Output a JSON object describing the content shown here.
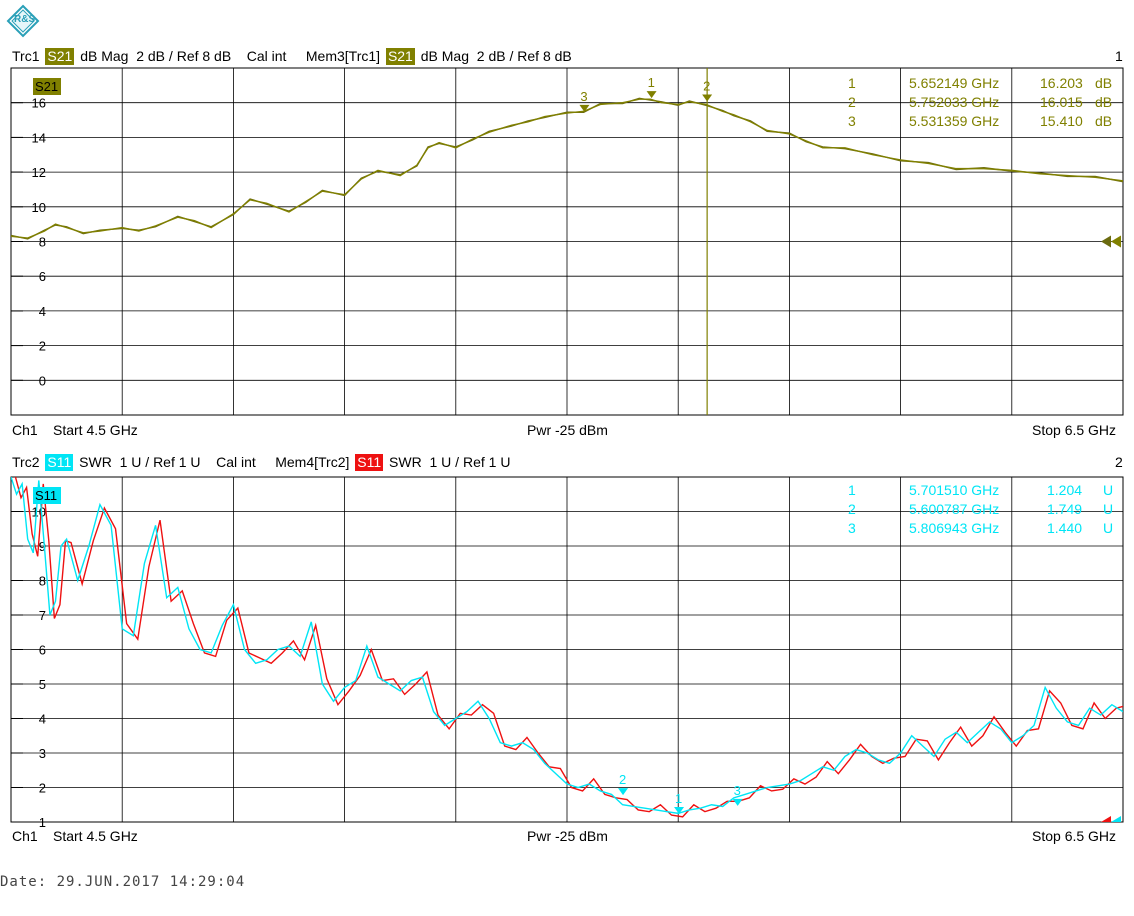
{
  "logo": {
    "text": "R&S",
    "color": "#2aa0b8"
  },
  "top_header": {
    "trace": "Trc1",
    "param": "S21",
    "format": "dB Mag",
    "scale": "2 dB /",
    "ref": "Ref 8 dB",
    "cal": "Cal int",
    "mem": "Mem3[Trc1]",
    "mem_param": "S21",
    "mem_format": "dB Mag",
    "mem_scale": "2 dB /",
    "mem_ref": "Ref 8 dB",
    "index": "1"
  },
  "bottom_header": {
    "trace": "Trc2",
    "param": "S11",
    "format": "SWR",
    "scale": "1 U /",
    "ref": "Ref 1 U",
    "cal": "Cal int",
    "mem": "Mem4[Trc2]",
    "mem_param": "S11",
    "mem_format": "SWR",
    "mem_scale": "1 U /",
    "mem_ref": "Ref 1 U",
    "index": "2"
  },
  "top_footer": {
    "ch": "Ch1",
    "start": "Start  4.5 GHz",
    "pwr": "Pwr  -25 dBm",
    "stop": "Stop  6.5 GHz"
  },
  "bottom_footer": {
    "ch": "Ch1",
    "start": "Start  4.5 GHz",
    "pwr": "Pwr  -25 dBm",
    "stop": "Stop  6.5 GHz"
  },
  "date": "Date: 29.JUN.2017  14:29:04",
  "colors": {
    "trc1": "#808000",
    "mem3": "#6b6b10",
    "trc2": "#00e5f5",
    "mem4": "#ee1111",
    "grid": "#000000"
  },
  "chart_data": [
    {
      "type": "line",
      "label": "S21",
      "x_range_ghz": [
        4.5,
        6.5
      ],
      "ylim": [
        -2,
        18
      ],
      "yticks": [
        0,
        2,
        4,
        6,
        8,
        10,
        12,
        14,
        16
      ],
      "grid": true,
      "series": [
        {
          "name": "Trc1",
          "x": [
            4.5,
            4.53,
            4.56,
            4.58,
            4.6,
            4.63,
            4.66,
            4.7,
            4.73,
            4.76,
            4.8,
            4.83,
            4.86,
            4.9,
            4.93,
            4.96,
            5.0,
            5.03,
            5.06,
            5.1,
            5.13,
            5.16,
            5.2,
            5.23,
            5.25,
            5.27,
            5.3,
            5.33,
            5.36,
            5.4,
            5.43,
            5.46,
            5.5,
            5.53,
            5.56,
            5.6,
            5.63,
            5.65,
            5.67,
            5.7,
            5.72,
            5.75,
            5.78,
            5.8,
            5.83,
            5.86,
            5.9,
            5.93,
            5.96,
            6.0,
            6.05,
            6.1,
            6.15,
            6.2,
            6.25,
            6.3,
            6.35,
            6.4,
            6.45,
            6.5
          ],
          "y": [
            8.3,
            8.2,
            8.6,
            9.0,
            8.8,
            8.5,
            8.6,
            8.8,
            8.6,
            8.9,
            9.4,
            9.2,
            8.8,
            9.6,
            10.4,
            10.2,
            9.7,
            10.3,
            10.9,
            10.7,
            11.6,
            12.1,
            11.8,
            12.4,
            13.4,
            13.7,
            13.4,
            13.9,
            14.3,
            14.7,
            14.9,
            15.2,
            15.4,
            15.5,
            15.9,
            16.0,
            16.2,
            16.2,
            16.0,
            15.9,
            16.05,
            15.9,
            15.5,
            15.3,
            14.9,
            14.4,
            14.2,
            13.8,
            13.4,
            13.4,
            13.0,
            12.7,
            12.5,
            12.2,
            12.2,
            12.1,
            11.9,
            11.8,
            11.7,
            11.5
          ]
        },
        {
          "name": "Mem3[Trc1]"
        }
      ],
      "markers": [
        {
          "id": "1",
          "freq": "5.652149 GHz",
          "value": "16.203",
          "unit": "dB",
          "x": 5.652149,
          "y": 16.203
        },
        {
          "id": "2",
          "freq": "5.752033 GHz",
          "value": "16.015",
          "unit": "dB",
          "x": 5.752033,
          "y": 16.015
        },
        {
          "id": "3",
          "freq": "5.531359 GHz",
          "value": "15.410",
          "unit": "dB",
          "x": 5.531359,
          "y": 15.41
        }
      ],
      "ref_level": 8
    },
    {
      "type": "line",
      "label": "S11",
      "x_range_ghz": [
        4.5,
        6.5
      ],
      "ylim": [
        1,
        11
      ],
      "yticks": [
        1,
        2,
        3,
        4,
        5,
        6,
        7,
        8,
        9,
        10
      ],
      "grid": true,
      "series": [
        {
          "name": "Trc2",
          "x": [
            4.5,
            4.51,
            4.52,
            4.53,
            4.54,
            4.55,
            4.56,
            4.57,
            4.58,
            4.59,
            4.6,
            4.62,
            4.64,
            4.66,
            4.68,
            4.7,
            4.72,
            4.74,
            4.76,
            4.78,
            4.8,
            4.82,
            4.84,
            4.86,
            4.88,
            4.9,
            4.92,
            4.94,
            4.96,
            4.98,
            5.0,
            5.02,
            5.04,
            5.06,
            5.08,
            5.1,
            5.12,
            5.14,
            5.16,
            5.18,
            5.2,
            5.22,
            5.24,
            5.26,
            5.28,
            5.3,
            5.32,
            5.34,
            5.36,
            5.38,
            5.4,
            5.42,
            5.44,
            5.46,
            5.48,
            5.5,
            5.52,
            5.54,
            5.56,
            5.58,
            5.6,
            5.62,
            5.64,
            5.66,
            5.68,
            5.7,
            5.72,
            5.74,
            5.76,
            5.78,
            5.8,
            5.82,
            5.84,
            5.86,
            5.88,
            5.9,
            5.92,
            5.94,
            5.96,
            5.98,
            6.0,
            6.02,
            6.04,
            6.06,
            6.08,
            6.1,
            6.12,
            6.14,
            6.16,
            6.18,
            6.2,
            6.22,
            6.24,
            6.26,
            6.28,
            6.3,
            6.32,
            6.34,
            6.36,
            6.38,
            6.4,
            6.42,
            6.44,
            6.46,
            6.48,
            6.5
          ],
          "y": [
            11,
            10.5,
            10.8,
            9.2,
            8.8,
            10.9,
            9.0,
            7.0,
            7.4,
            9.0,
            9.2,
            8.0,
            9.0,
            10.2,
            9.6,
            6.6,
            6.4,
            8.5,
            9.6,
            7.5,
            7.8,
            6.6,
            6.0,
            5.9,
            6.7,
            7.3,
            6.0,
            5.6,
            5.7,
            6.0,
            6.1,
            5.8,
            6.8,
            5.0,
            4.5,
            4.9,
            5.1,
            6.1,
            5.2,
            5.0,
            4.8,
            5.1,
            5.2,
            4.2,
            3.8,
            4.0,
            4.2,
            4.5,
            4.0,
            3.3,
            3.2,
            3.3,
            3.1,
            2.7,
            2.4,
            2.1,
            2.0,
            2.1,
            1.9,
            1.8,
            1.5,
            1.45,
            1.4,
            1.35,
            1.3,
            1.25,
            1.35,
            1.4,
            1.5,
            1.45,
            1.7,
            1.8,
            1.9,
            2.0,
            2.05,
            2.1,
            2.2,
            2.4,
            2.6,
            2.5,
            2.9,
            3.1,
            3.0,
            2.8,
            2.7,
            3.0,
            3.5,
            3.2,
            2.9,
            3.4,
            3.6,
            3.3,
            3.6,
            3.9,
            3.7,
            3.3,
            3.5,
            3.8,
            4.9,
            4.3,
            3.9,
            3.8,
            4.3,
            4.1,
            4.4,
            4.2
          ]
        },
        {
          "name": "Mem4[Trc2]"
        }
      ],
      "markers": [
        {
          "id": "1",
          "freq": "5.701510 GHz",
          "value": "1.204",
          "unit": "U",
          "x": 5.70151,
          "y": 1.204
        },
        {
          "id": "2",
          "freq": "5.600787 GHz",
          "value": "1.749",
          "unit": "U",
          "x": 5.600787,
          "y": 1.749
        },
        {
          "id": "3",
          "freq": "5.806943 GHz",
          "value": "1.440",
          "unit": "U",
          "x": 5.806943,
          "y": 1.44
        }
      ],
      "ref_level": 1
    }
  ]
}
